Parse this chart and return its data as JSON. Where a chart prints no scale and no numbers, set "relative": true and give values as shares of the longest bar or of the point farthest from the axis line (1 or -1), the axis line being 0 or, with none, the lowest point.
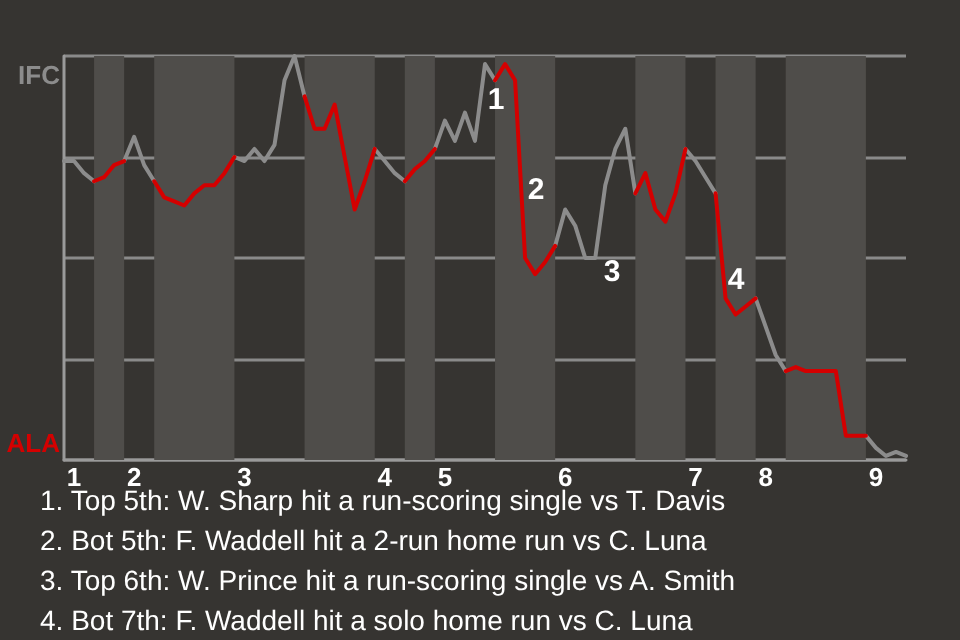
{
  "chart_data": {
    "type": "line",
    "relative": true,
    "categories": [
      null,
      "1",
      null,
      null,
      null,
      null,
      null,
      "2",
      null,
      null,
      null,
      null,
      null,
      null,
      null,
      null,
      null,
      null,
      "3",
      null,
      null,
      null,
      null,
      null,
      null,
      null,
      null,
      null,
      null,
      null,
      null,
      null,
      "4",
      null,
      null,
      null,
      null,
      null,
      "5",
      null,
      null,
      null,
      null,
      null,
      null,
      null,
      null,
      null,
      null,
      null,
      "6",
      null,
      null,
      null,
      null,
      null,
      null,
      null,
      null,
      null,
      null,
      null,
      null,
      "7",
      null,
      null,
      null,
      null,
      null,
      null,
      "8",
      null,
      null,
      null,
      null,
      null,
      null,
      null,
      null,
      null,
      null,
      "9",
      null,
      null,
      null
    ],
    "grid": "y",
    "marker": "none",
    "line_style": "solid",
    "series": [
      {
        "name": "IFC",
        "color": "#8c8c8c",
        "values": [
          0.74,
          0.74,
          0.71,
          0.69,
          null,
          null,
          0.74,
          0.8,
          0.73,
          0.69,
          null,
          null,
          null,
          null,
          null,
          null,
          null,
          0.75,
          0.74,
          0.77,
          0.74,
          0.78,
          0.94,
          1,
          0.9,
          null,
          null,
          null,
          null,
          null,
          null,
          0.77,
          0.74,
          0.71,
          0.69,
          null,
          null,
          0.77,
          0.84,
          0.79,
          0.86,
          0.79,
          0.98,
          0.94,
          null,
          null,
          null,
          null,
          null,
          0.53,
          0.62,
          0.58,
          0.5,
          0.5,
          0.68,
          0.77,
          0.82,
          0.66,
          null,
          null,
          null,
          null,
          0.77,
          0.74,
          0.7,
          0.66,
          null,
          null,
          null,
          0.4,
          0.33,
          0.26,
          0.22,
          null,
          null,
          null,
          null,
          null,
          null,
          null,
          0.06,
          0.03,
          0.01,
          0.02,
          0.01
        ]
      },
      {
        "name": "ALA",
        "color": "#d40000",
        "values": [
          null,
          null,
          null,
          0.69,
          0.7,
          0.73,
          0.74,
          null,
          null,
          0.69,
          0.65,
          0.64,
          0.63,
          0.66,
          0.68,
          0.68,
          0.71,
          0.75,
          null,
          null,
          null,
          null,
          null,
          null,
          0.9,
          0.82,
          0.82,
          0.88,
          0.75,
          0.62,
          0.69,
          0.77,
          null,
          null,
          0.69,
          0.72,
          0.74,
          0.77,
          null,
          null,
          null,
          null,
          null,
          0.94,
          0.98,
          0.94,
          0.5,
          0.46,
          0.49,
          0.53,
          null,
          null,
          null,
          null,
          null,
          null,
          null,
          0.66,
          0.71,
          0.62,
          0.59,
          0.66,
          0.77,
          null,
          null,
          0.66,
          0.4,
          0.36,
          0.38,
          0.4,
          null,
          null,
          0.22,
          0.23,
          0.22,
          0.22,
          0.22,
          0.22,
          0.06,
          0.06,
          0.06,
          null,
          null,
          null,
          null
        ]
      }
    ],
    "annotations": [
      "1",
      "2",
      "3",
      "4",
      "1. Top 5th: W. Sharp hit a run-scoring single vs T. Davis",
      "2. Bot 5th: F. Waddell hit a 2-run home run vs C. Luna",
      "3. Top 6th: W. Prince hit a run-scoring single vs A. Smith",
      "4. Bot 7th: F. Waddell hit a solo home run vs C. Luna"
    ]
  }
}
